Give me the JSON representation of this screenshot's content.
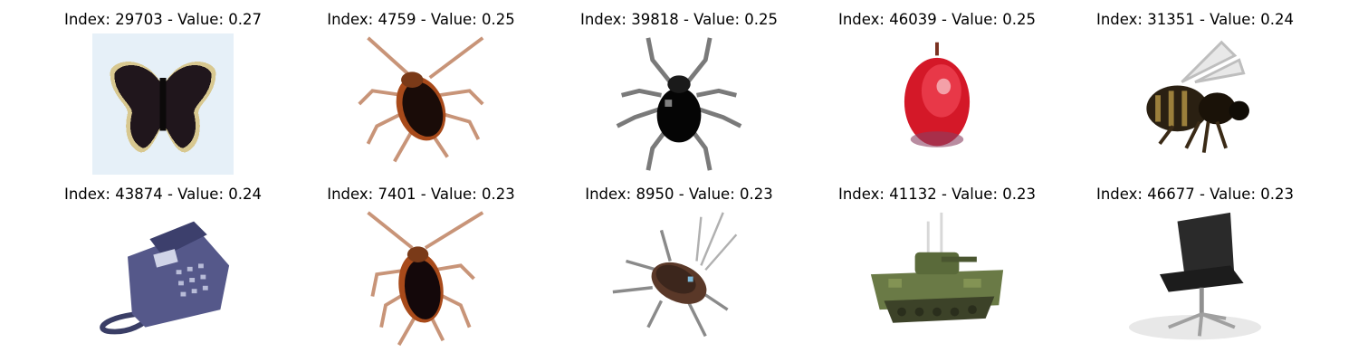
{
  "grid": {
    "panels": [
      {
        "caption": "Index: 29703 - Value: 0.27",
        "subject": "butterfly"
      },
      {
        "caption": "Index: 4759 - Value: 0.25",
        "subject": "cockroach"
      },
      {
        "caption": "Index: 39818 - Value: 0.25",
        "subject": "beetle"
      },
      {
        "caption": "Index: 46039 - Value: 0.25",
        "subject": "apple"
      },
      {
        "caption": "Index: 31351 - Value: 0.24",
        "subject": "bee"
      },
      {
        "caption": "Index: 43874 - Value: 0.24",
        "subject": "telephone"
      },
      {
        "caption": "Index: 7401 - Value: 0.23",
        "subject": "cockroach"
      },
      {
        "caption": "Index: 8950 - Value: 0.23",
        "subject": "cockroach"
      },
      {
        "caption": "Index: 41132 - Value: 0.23",
        "subject": "tank"
      },
      {
        "caption": "Index: 46677 - Value: 0.23",
        "subject": "chair"
      }
    ]
  }
}
